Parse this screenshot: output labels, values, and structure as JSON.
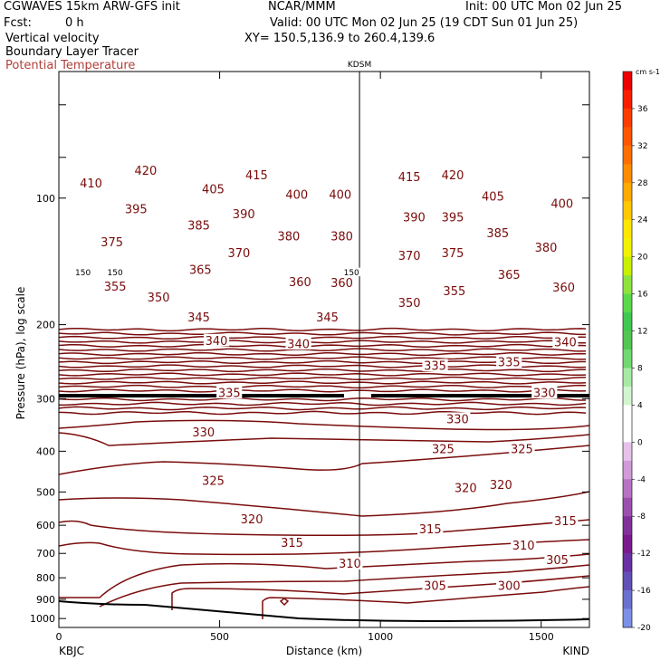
{
  "header": {
    "model": "CGWAVES 15km ARW-GFS init",
    "center": "NCAR/MMM",
    "init": "Init: 00 UTC Mon 02 Jun 25",
    "fcst_label": "Fcst:",
    "fcst_value": "0 h",
    "valid": "Valid: 00 UTC Mon 02 Jun 25 (19 CDT Sun 01 Jun 25)",
    "field1": "Vertical velocity",
    "xy": "XY= 150.5,136.9 to 260.4,139.6",
    "field2": "Boundary Layer Tracer",
    "field3": "Potential Temperature"
  },
  "chart_data": {
    "type": "line",
    "title": "Potential Temperature",
    "xlabel": "Distance (km)",
    "ylabel": "Pressure (hPa), log scale",
    "xlim": [
      0,
      1650
    ],
    "ylim": [
      1050,
      50
    ],
    "y_scale": "log",
    "x_ticks": [
      0,
      500,
      1000,
      1500
    ],
    "y_ticks": [
      100,
      200,
      300,
      400,
      500,
      600,
      700,
      800,
      900,
      1000
    ],
    "end_labels": {
      "left": "KBJC",
      "right": "KIND"
    },
    "marker_label": {
      "text": "KDSM",
      "x": 935
    },
    "contour_color": "#7a0c0c",
    "contour_labels": [
      {
        "t": "420",
        "x": 270,
        "p": 86
      },
      {
        "t": "415",
        "x": 615,
        "p": 88
      },
      {
        "t": "415",
        "x": 1090,
        "p": 89
      },
      {
        "t": "420",
        "x": 1225,
        "p": 88
      },
      {
        "t": "410",
        "x": 100,
        "p": 92
      },
      {
        "t": "405",
        "x": 480,
        "p": 95
      },
      {
        "t": "400",
        "x": 740,
        "p": 98
      },
      {
        "t": "400",
        "x": 875,
        "p": 98
      },
      {
        "t": "405",
        "x": 1350,
        "p": 99
      },
      {
        "t": "400",
        "x": 1565,
        "p": 103
      },
      {
        "t": "395",
        "x": 240,
        "p": 106
      },
      {
        "t": "390",
        "x": 575,
        "p": 109
      },
      {
        "t": "390",
        "x": 1105,
        "p": 111
      },
      {
        "t": "395",
        "x": 1225,
        "p": 111
      },
      {
        "t": "385",
        "x": 435,
        "p": 116
      },
      {
        "t": "380",
        "x": 715,
        "p": 123
      },
      {
        "t": "380",
        "x": 880,
        "p": 123
      },
      {
        "t": "385",
        "x": 1365,
        "p": 121
      },
      {
        "t": "375",
        "x": 165,
        "p": 127
      },
      {
        "t": "370",
        "x": 560,
        "p": 135
      },
      {
        "t": "370",
        "x": 1090,
        "p": 137
      },
      {
        "t": "375",
        "x": 1225,
        "p": 135
      },
      {
        "t": "380",
        "x": 1515,
        "p": 131
      },
      {
        "t": "150",
        "x": 75,
        "p": 150
      },
      {
        "t": "150",
        "x": 175,
        "p": 150
      },
      {
        "t": "365",
        "x": 440,
        "p": 148
      },
      {
        "t": "150",
        "x": 910,
        "p": 150
      },
      {
        "t": "365",
        "x": 1400,
        "p": 152
      },
      {
        "t": "360",
        "x": 750,
        "p": 158
      },
      {
        "t": "360",
        "x": 880,
        "p": 159
      },
      {
        "t": "355",
        "x": 175,
        "p": 162
      },
      {
        "t": "355",
        "x": 1230,
        "p": 166
      },
      {
        "t": "360",
        "x": 1570,
        "p": 163
      },
      {
        "t": "350",
        "x": 310,
        "p": 172
      },
      {
        "t": "350",
        "x": 1090,
        "p": 177
      },
      {
        "t": "345",
        "x": 435,
        "p": 192
      },
      {
        "t": "345",
        "x": 835,
        "p": 192
      },
      {
        "t": "340",
        "x": 490,
        "p": 218
      },
      {
        "t": "340",
        "x": 745,
        "p": 222
      },
      {
        "t": "340",
        "x": 1575,
        "p": 220
      },
      {
        "t": "335",
        "x": 1170,
        "p": 250
      },
      {
        "t": "335",
        "x": 1400,
        "p": 245
      },
      {
        "t": "335",
        "x": 530,
        "p": 290
      },
      {
        "t": "330",
        "x": 1510,
        "p": 290
      },
      {
        "t": "330",
        "x": 1240,
        "p": 335
      },
      {
        "t": "330",
        "x": 450,
        "p": 360
      },
      {
        "t": "325",
        "x": 1195,
        "p": 395
      },
      {
        "t": "325",
        "x": 1440,
        "p": 395
      },
      {
        "t": "325",
        "x": 480,
        "p": 470
      },
      {
        "t": "320",
        "x": 1265,
        "p": 488
      },
      {
        "t": "320",
        "x": 1375,
        "p": 480
      },
      {
        "t": "320",
        "x": 600,
        "p": 580
      },
      {
        "t": "315",
        "x": 1575,
        "p": 585
      },
      {
        "t": "315",
        "x": 1155,
        "p": 612
      },
      {
        "t": "315",
        "x": 725,
        "p": 660
      },
      {
        "t": "310",
        "x": 1445,
        "p": 670
      },
      {
        "t": "310",
        "x": 905,
        "p": 740
      },
      {
        "t": "305",
        "x": 1550,
        "p": 725
      },
      {
        "t": "305",
        "x": 1170,
        "p": 835
      },
      {
        "t": "300",
        "x": 1400,
        "p": 835
      }
    ],
    "colorbar": {
      "unit": "cm s-1",
      "labels": [
        "36",
        "32",
        "28",
        "24",
        "20",
        "16",
        "12",
        "8",
        "4",
        "0",
        "-4",
        "-8",
        "-12",
        "-16",
        "-20"
      ],
      "colors": [
        "#ee0000",
        "#fa1e00",
        "#ff3c00",
        "#ff5500",
        "#ff6e00",
        "#ff8c00",
        "#ffaa00",
        "#ffc800",
        "#ffe600",
        "#f2f200",
        "#c8f000",
        "#8ee43c",
        "#5ada4a",
        "#40c850",
        "#52c852",
        "#72d870",
        "#a8eaa4",
        "#d2f5cf",
        "#ffffff",
        "#ffffff",
        "#e6c2ea",
        "#d29ad8",
        "#b872c4",
        "#9c50ae",
        "#82309a",
        "#7a1a8e",
        "#6a30a4",
        "#6250b8",
        "#6c70d0",
        "#7c90e8"
      ]
    }
  }
}
